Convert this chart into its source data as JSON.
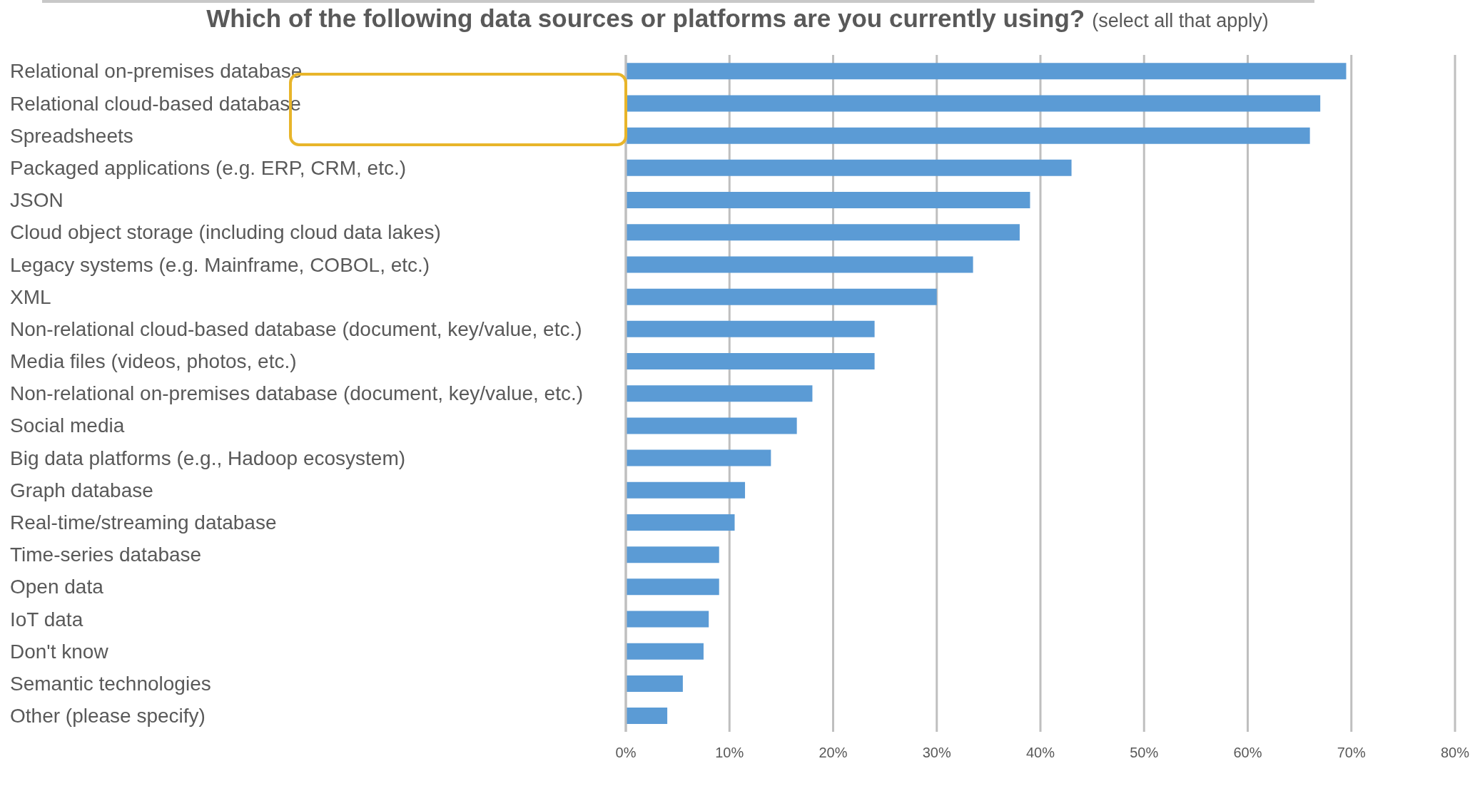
{
  "chart_data": {
    "type": "bar",
    "orientation": "horizontal",
    "title": "Which of the following data sources or platforms are you currently using?",
    "subtitle": "(select all that apply)",
    "categories": [
      "Relational on-premises database",
      "Relational cloud-based database",
      "Spreadsheets",
      "Packaged applications (e.g. ERP, CRM, etc.)",
      "JSON",
      "Cloud object storage (including cloud data lakes)",
      "Legacy systems (e.g. Mainframe, COBOL, etc.)",
      "XML",
      "Non-relational cloud-based database (document, key/value, etc.)",
      "Media files (videos, photos, etc.)",
      "Non-relational on-premises database (document, key/value, etc.)",
      "Social media",
      "Big data platforms (e.g., Hadoop ecosystem)",
      "Graph database",
      "Real-time/streaming database",
      "Time-series database",
      "Open data",
      "IoT data",
      "Don't know",
      "Semantic technologies",
      "Other (please specify)"
    ],
    "values": [
      69.5,
      67,
      66,
      43,
      39,
      38,
      33.5,
      30,
      24,
      24,
      18,
      16.5,
      14,
      11.5,
      10.5,
      9,
      9,
      8,
      7.5,
      5.5,
      4
    ],
    "color": "#5b9bd5",
    "xlim": [
      0,
      80
    ],
    "xticks": [
      {
        "value": 0,
        "label": "0%"
      },
      {
        "value": 10,
        "label": "10%"
      },
      {
        "value": 20,
        "label": "20%"
      },
      {
        "value": 30,
        "label": "30%"
      },
      {
        "value": 40,
        "label": "40%"
      },
      {
        "value": 50,
        "label": "50%"
      },
      {
        "value": 60,
        "label": "60%"
      },
      {
        "value": 70,
        "label": "70%"
      },
      {
        "value": 80,
        "label": "80%"
      }
    ],
    "grid": "x"
  }
}
